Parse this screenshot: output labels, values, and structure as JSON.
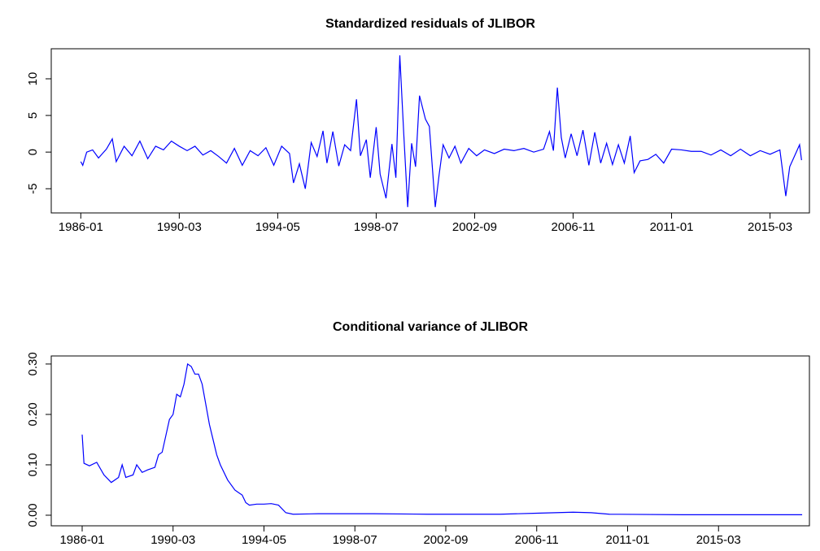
{
  "chart_data": [
    {
      "type": "line",
      "title": "Standardized residuals of JLIBOR",
      "color": "#0000ff",
      "x": [
        "1986-01",
        "1986-02",
        "1986-04",
        "1986-07",
        "1986-10",
        "1987-02",
        "1987-05",
        "1987-07",
        "1987-11",
        "1988-03",
        "1988-07",
        "1988-11",
        "1989-03",
        "1989-07",
        "1989-11",
        "1990-03",
        "1990-07",
        "1990-11",
        "1991-03",
        "1991-07",
        "1991-11",
        "1992-03",
        "1992-07",
        "1992-11",
        "1993-03",
        "1993-07",
        "1993-11",
        "1994-03",
        "1994-07",
        "1994-11",
        "1995-01",
        "1995-04",
        "1995-07",
        "1995-10",
        "1996-01",
        "1996-04",
        "1996-06",
        "1996-09",
        "1996-12",
        "1997-03",
        "1997-06",
        "1997-09",
        "1997-11",
        "1998-02",
        "1998-04",
        "1998-07",
        "1998-09",
        "1998-12",
        "1999-03",
        "1999-05",
        "1999-07",
        "1999-09",
        "1999-11",
        "2000-01",
        "2000-03",
        "2000-05",
        "2000-08",
        "2000-10",
        "2001-01",
        "2001-03",
        "2001-05",
        "2001-08",
        "2001-11",
        "2002-02",
        "2002-06",
        "2002-10",
        "2003-02",
        "2003-07",
        "2003-12",
        "2004-05",
        "2004-10",
        "2005-03",
        "2005-08",
        "2005-11",
        "2006-01",
        "2006-03",
        "2006-05",
        "2006-07",
        "2006-10",
        "2007-01",
        "2007-04",
        "2007-07",
        "2007-10",
        "2008-01",
        "2008-04",
        "2008-07",
        "2008-10",
        "2009-01",
        "2009-04",
        "2009-06",
        "2009-09",
        "2010-01",
        "2010-05",
        "2010-09",
        "2011-01",
        "2011-06",
        "2011-11",
        "2012-04",
        "2012-09",
        "2013-02",
        "2013-07",
        "2013-12",
        "2014-05",
        "2014-10",
        "2015-03",
        "2015-08",
        "2015-11",
        "2016-01",
        "2016-04",
        "2016-06",
        "2016-07"
      ],
      "values": [
        -1.3,
        -1.8,
        0,
        0.3,
        -0.8,
        0.4,
        1.8,
        -1.3,
        0.8,
        -0.5,
        1.5,
        -0.9,
        0.8,
        0.3,
        1.5,
        0.8,
        0.2,
        0.8,
        -0.4,
        0.2,
        -0.6,
        -1.5,
        0.5,
        -1.8,
        0.2,
        -0.5,
        0.6,
        -1.8,
        0.8,
        -0.2,
        -4.2,
        -1.6,
        -5.0,
        1.3,
        -0.6,
        2.9,
        -1.5,
        2.8,
        -1.9,
        1.0,
        0.2,
        7.2,
        -0.5,
        1.7,
        -3.5,
        3.4,
        -3.0,
        -6.3,
        1.1,
        -3.5,
        13.2,
        2.5,
        -7.5,
        1.2,
        -2.0,
        7.7,
        4.5,
        3.5,
        -7.5,
        -3.0,
        1.0,
        -0.8,
        0.8,
        -1.5,
        0.5,
        -0.5,
        0.3,
        -0.2,
        0.4,
        0.2,
        0.5,
        0,
        0.4,
        2.8,
        0.2,
        8.8,
        2,
        -0.8,
        2.5,
        -0.5,
        3.0,
        -1.8,
        2.7,
        -1.5,
        1.2,
        -1.7,
        1.0,
        -1.5,
        2.2,
        -2.8,
        -1.2,
        -1.0,
        -0.3,
        -1.5,
        0.4,
        0.3,
        0.1,
        0.1,
        -0.4,
        0.3,
        -0.5,
        0.4,
        -0.5,
        0.2,
        -0.3,
        0.3,
        -6.0,
        -2.0,
        -0.2,
        1.0,
        -1.1
      ],
      "xlim": [
        "1984-10",
        "2016-11"
      ],
      "xticks": [
        "1986-01",
        "1990-03",
        "1994-05",
        "1998-07",
        "2002-09",
        "2006-11",
        "2011-01",
        "2015-03"
      ],
      "ylim": [
        -8.3,
        14.1
      ],
      "yticks": [
        -5,
        0,
        5,
        10
      ]
    },
    {
      "type": "line",
      "title": "Conditional variance of JLIBOR",
      "color": "#0000ff",
      "x": [
        "1986-01",
        "1986-02",
        "1986-05",
        "1986-09",
        "1987-01",
        "1987-05",
        "1987-09",
        "1987-11",
        "1988-01",
        "1988-05",
        "1988-07",
        "1988-10",
        "1989-01",
        "1989-05",
        "1989-07",
        "1989-09",
        "1990-01",
        "1990-03",
        "1990-05",
        "1990-07",
        "1990-09",
        "1990-11",
        "1991-01",
        "1991-03",
        "1991-05",
        "1991-07",
        "1991-09",
        "1991-11",
        "1992-01",
        "1992-03",
        "1992-05",
        "1992-09",
        "1993-01",
        "1993-03",
        "1993-05",
        "1993-07",
        "1993-09",
        "1994-01",
        "1994-05",
        "1994-09",
        "1995-01",
        "1995-05",
        "1995-09",
        "1996-11",
        "1998-07",
        "1999-05",
        "2001-11",
        "2005-03",
        "2006-11",
        "2008-07",
        "2009-05",
        "2010-03",
        "2013-07",
        "2019-01"
      ],
      "values": [
        0.16,
        0.103,
        0.098,
        0.105,
        0.08,
        0.065,
        0.075,
        0.1,
        0.075,
        0.08,
        0.1,
        0.085,
        0.09,
        0.095,
        0.12,
        0.125,
        0.19,
        0.2,
        0.24,
        0.235,
        0.26,
        0.3,
        0.295,
        0.28,
        0.28,
        0.26,
        0.22,
        0.18,
        0.15,
        0.12,
        0.1,
        0.07,
        0.05,
        0.045,
        0.04,
        0.025,
        0.02,
        0.022,
        0.022,
        0.023,
        0.02,
        0.005,
        0.002,
        0.003,
        0.003,
        0.003,
        0.002,
        0.002,
        0.004,
        0.006,
        0.005,
        0.002,
        0.001,
        0.001
      ],
      "xlim": [
        "1984-08",
        "2019-05"
      ],
      "xticks": [
        "1986-01",
        "1990-03",
        "1994-05",
        "1998-07",
        "2002-09",
        "2006-11",
        "2011-01",
        "2015-03"
      ],
      "ylim": [
        -0.021,
        0.316
      ],
      "yticks": [
        {
          "value": 0,
          "label": "0.00"
        },
        {
          "value": 0.1,
          "label": "0.10"
        },
        {
          "value": 0.2,
          "label": "0.20"
        },
        {
          "value": 0.3,
          "label": "0.30"
        }
      ]
    }
  ]
}
